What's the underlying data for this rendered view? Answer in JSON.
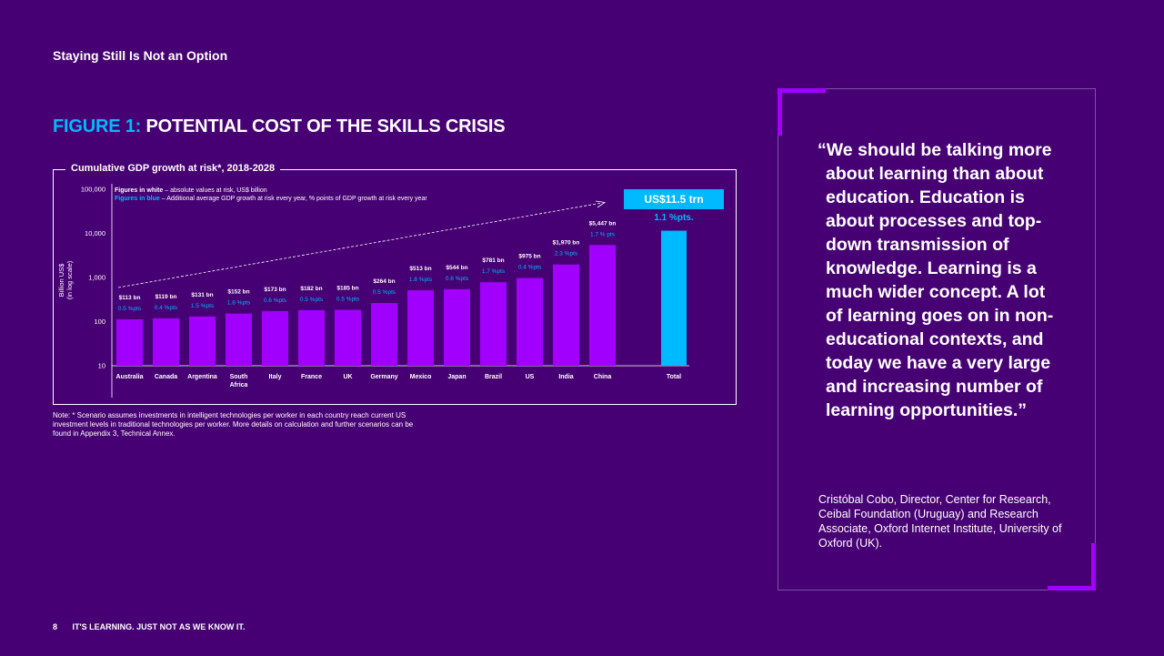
{
  "header": {
    "title": "Staying Still Is Not an Option"
  },
  "figure": {
    "label": "FIGURE 1:",
    "title": "POTENTIAL COST OF THE SKILLS CRISIS"
  },
  "chart_data": {
    "type": "bar",
    "title": "Cumulative GDP growth at risk*, 2018-2028",
    "ylabel_lines": [
      "Billion US$",
      "(in log scale)"
    ],
    "yscale": "log",
    "ylim": [
      10,
      100000
    ],
    "yticks": [
      10,
      100,
      1000,
      10000,
      100000
    ],
    "ytick_labels": [
      "10",
      "100",
      "1,000",
      "10,000",
      "100,000"
    ],
    "legend": {
      "white_label": "Figures in white",
      "white_desc": " – absolute values at risk, US$ billion",
      "blue_label": "Figures in blue",
      "blue_desc": " – Additional average GDP growth at risk every year, % points of GDP growth at risk every year"
    },
    "categories": [
      "Australia",
      "Canada",
      "Argentina",
      "South Africa",
      "Italy",
      "France",
      "UK",
      "Germany",
      "Mexico",
      "Japan",
      "Brazil",
      "US",
      "India",
      "China"
    ],
    "category_lines": [
      [
        "Australia"
      ],
      [
        "Canada"
      ],
      [
        "Argentina"
      ],
      [
        "South",
        "Africa"
      ],
      [
        "Italy"
      ],
      [
        "France"
      ],
      [
        "UK"
      ],
      [
        "Germany"
      ],
      [
        "Mexico"
      ],
      [
        "Japan"
      ],
      [
        "Brazil"
      ],
      [
        "US"
      ],
      [
        "India"
      ],
      [
        "China"
      ]
    ],
    "values": [
      113,
      119,
      131,
      152,
      173,
      182,
      185,
      264,
      513,
      544,
      781,
      975,
      1970,
      5447
    ],
    "value_labels": [
      "$113 bn",
      "$119 bn",
      "$131 bn",
      "$152 bn",
      "$173 bn",
      "$182 bn",
      "$185 bn",
      "$264 bn",
      "$513 bn",
      "$544 bn",
      "$781 bn",
      "$975 bn",
      "$1,970 bn",
      "$5,447 bn"
    ],
    "pts_labels": [
      "0.5 %pts",
      "0.4 %pts",
      "1.5 %pts",
      "1.8 %pts",
      "0.6 %pts",
      "0.5 %pts",
      "0.5 %pts",
      "0.5 %pts",
      "1.8 %pts",
      "0.6 %pts",
      "1.7 %pts",
      "0.4 %pts",
      "2.3 %pts",
      "1.7 % pts"
    ],
    "total": {
      "category": "Total",
      "value": 11500,
      "value_label": "US$11.5 trn",
      "pts_label": "1.1 %pts."
    },
    "colors": {
      "bar": "#a100ff",
      "total_bar": "#00baff",
      "pts_text": "#00baff",
      "background": "#460073"
    }
  },
  "note": "Note: * Scenario assumes investments in intelligent technologies per worker in each country reach current US investment levels in traditional technologies per worker. More details on calculation and further scenarios can be found in Appendix 3, Technical Annex.",
  "quote": {
    "text": "“We should be talking more about learning than about education. Education is about processes and top-down transmission of knowledge. Learning is a much wider concept. A lot of learning goes on in non-educational contexts, and today we have a very large and increasing number of learning opportunities.”",
    "attribution": "Cristóbal Cobo, Director, Center for Research, Ceibal Foundation (Uruguay) and Research Associate, Oxford Internet Institute, University of Oxford (UK)."
  },
  "footer": {
    "page_number": "8",
    "text": "IT'S LEARNING. JUST NOT AS WE KNOW IT."
  }
}
